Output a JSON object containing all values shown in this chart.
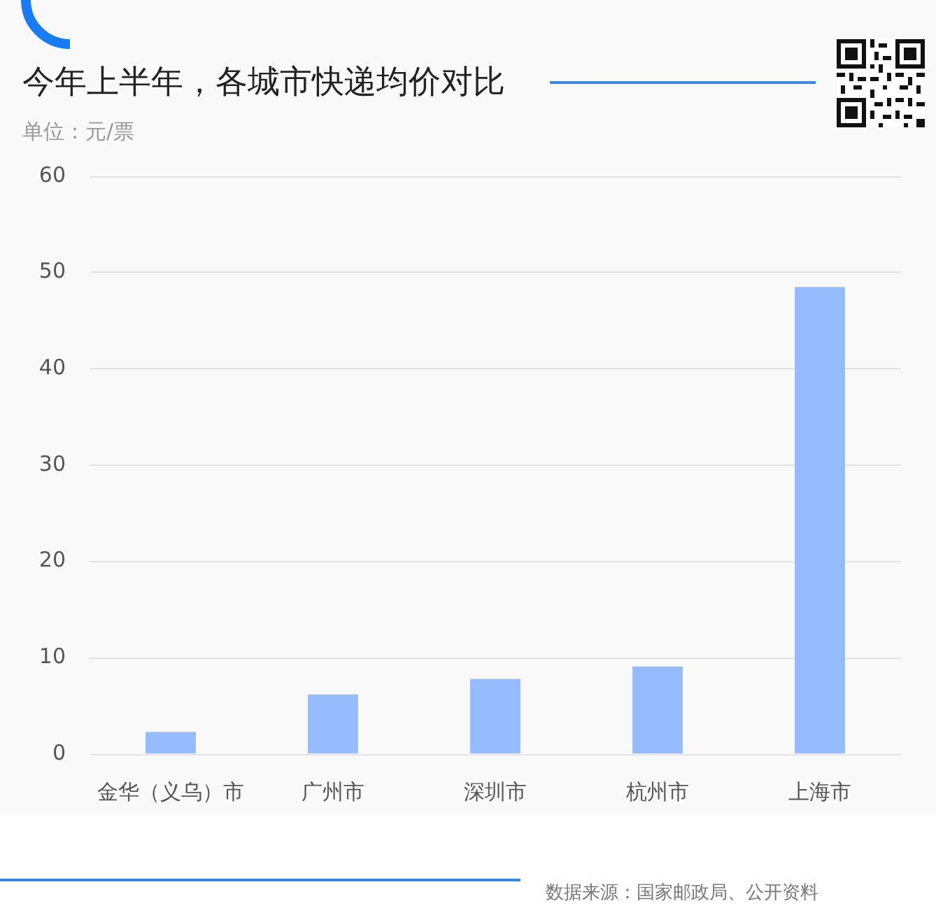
{
  "chart_data": {
    "type": "bar",
    "title": "今年上半年，各城市快递均价对比",
    "ylabel": "单位：元/票",
    "categories": [
      "金华（义乌）市",
      "广州市",
      "深圳市",
      "杭州市",
      "上海市"
    ],
    "values": [
      2.3,
      6.2,
      7.8,
      9.1,
      48.5
    ],
    "color": "#96bbff",
    "ylim": [
      0,
      60
    ],
    "yticks": [
      0,
      10,
      20,
      30,
      40,
      50,
      60
    ],
    "grid": "y",
    "annotations": [
      "数据来源：国家邮政局、公开资料"
    ]
  }
}
